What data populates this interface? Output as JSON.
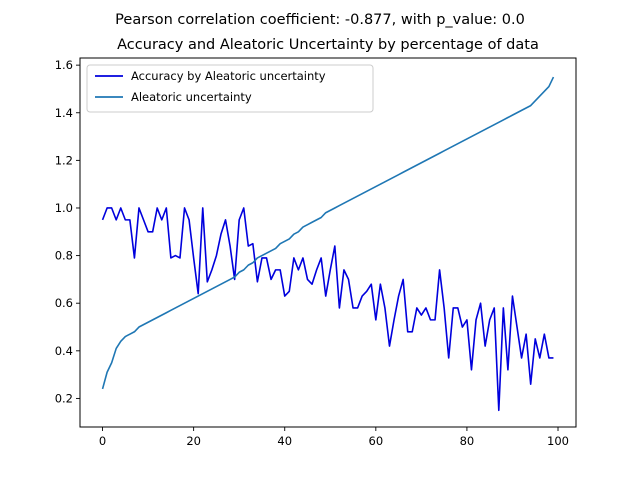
{
  "chart_data": {
    "type": "line",
    "title": "Pearson correlation coefficient: -0.877, with p_value: 0.0",
    "subtitle": "Accuracy and Aleatoric Uncertainty by percentage of data",
    "xlabel": "",
    "ylabel": "",
    "xlim": [
      -4.95,
      103.95
    ],
    "ylim": [
      0.08,
      1.63
    ],
    "x_ticks": [
      0,
      20,
      40,
      60,
      80,
      100
    ],
    "x_tick_labels": [
      "0",
      "20",
      "40",
      "60",
      "80",
      "100"
    ],
    "y_ticks": [
      0.2,
      0.4,
      0.6,
      0.8,
      1.0,
      1.2,
      1.4,
      1.6
    ],
    "y_tick_labels": [
      "0.2",
      "0.4",
      "0.6",
      "0.8",
      "1.0",
      "1.2",
      "1.4",
      "1.6"
    ],
    "grid": false,
    "legend_position": "top-left",
    "series": [
      {
        "name": "Accuracy by Aleatoric uncertainty",
        "color": "#0000dd",
        "values": [
          0.95,
          1.0,
          1.0,
          0.95,
          1.0,
          0.95,
          0.95,
          0.79,
          1.0,
          0.95,
          0.9,
          0.9,
          1.0,
          0.95,
          1.0,
          0.79,
          0.8,
          0.79,
          1.0,
          0.95,
          0.79,
          0.64,
          1.0,
          0.69,
          0.74,
          0.8,
          0.89,
          0.95,
          0.84,
          0.7,
          0.95,
          1.0,
          0.84,
          0.85,
          0.69,
          0.79,
          0.79,
          0.7,
          0.74,
          0.74,
          0.63,
          0.65,
          0.79,
          0.74,
          0.79,
          0.7,
          0.68,
          0.74,
          0.79,
          0.63,
          0.74,
          0.84,
          0.58,
          0.74,
          0.7,
          0.58,
          0.58,
          0.63,
          0.65,
          0.68,
          0.53,
          0.68,
          0.58,
          0.42,
          0.53,
          0.63,
          0.7,
          0.48,
          0.48,
          0.58,
          0.55,
          0.58,
          0.53,
          0.53,
          0.74,
          0.58,
          0.37,
          0.58,
          0.58,
          0.5,
          0.53,
          0.32,
          0.53,
          0.6,
          0.42,
          0.53,
          0.58,
          0.15,
          0.58,
          0.32,
          0.63,
          0.5,
          0.37,
          0.47,
          0.26,
          0.45,
          0.37,
          0.47,
          0.37,
          0.37
        ]
      },
      {
        "name": "Aleatoric uncertainty",
        "color": "#1f77b4",
        "values": [
          0.24,
          0.31,
          0.35,
          0.41,
          0.44,
          0.46,
          0.47,
          0.48,
          0.5,
          0.51,
          0.52,
          0.53,
          0.54,
          0.55,
          0.56,
          0.57,
          0.58,
          0.59,
          0.6,
          0.61,
          0.62,
          0.63,
          0.64,
          0.65,
          0.66,
          0.67,
          0.68,
          0.69,
          0.7,
          0.71,
          0.73,
          0.74,
          0.76,
          0.77,
          0.79,
          0.8,
          0.81,
          0.82,
          0.83,
          0.85,
          0.86,
          0.87,
          0.89,
          0.9,
          0.92,
          0.93,
          0.94,
          0.95,
          0.96,
          0.98,
          0.99,
          1.0,
          1.01,
          1.02,
          1.03,
          1.04,
          1.05,
          1.06,
          1.07,
          1.08,
          1.09,
          1.1,
          1.11,
          1.12,
          1.13,
          1.14,
          1.15,
          1.16,
          1.17,
          1.18,
          1.19,
          1.2,
          1.21,
          1.22,
          1.23,
          1.24,
          1.25,
          1.26,
          1.27,
          1.28,
          1.29,
          1.3,
          1.31,
          1.32,
          1.33,
          1.34,
          1.35,
          1.36,
          1.37,
          1.38,
          1.39,
          1.4,
          1.41,
          1.42,
          1.43,
          1.45,
          1.47,
          1.49,
          1.51,
          1.55
        ]
      }
    ]
  }
}
